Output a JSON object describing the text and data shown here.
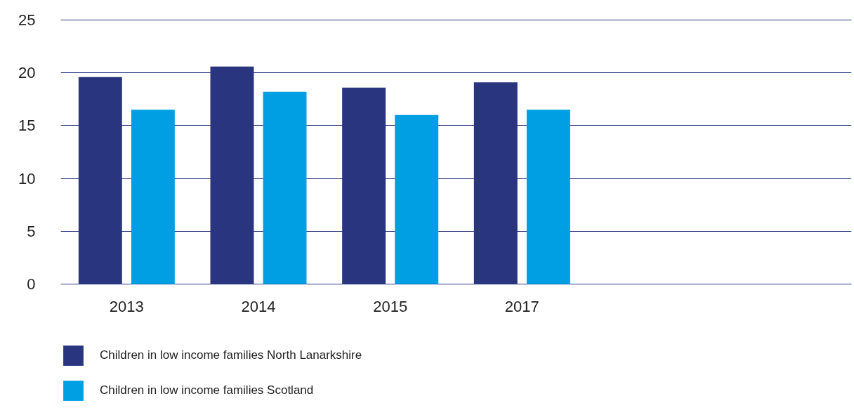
{
  "chart_data": {
    "type": "bar",
    "categories": [
      "2013",
      "2014",
      "2015",
      "2017",
      null,
      null
    ],
    "series": [
      {
        "name": "Children in low income families North Lanarkshire",
        "color": "#2a3580",
        "values": [
          19.6,
          20.6,
          18.6,
          19.1,
          null,
          null
        ]
      },
      {
        "name": "Children in low income families Scotland",
        "color": "#009fe3",
        "values": [
          16.5,
          18.2,
          16.0,
          16.5,
          null,
          null
        ]
      }
    ],
    "ylim": [
      0,
      25
    ],
    "yticks": [
      0,
      5,
      10,
      15,
      20,
      25
    ],
    "grid": "y",
    "legend": "bottom"
  }
}
